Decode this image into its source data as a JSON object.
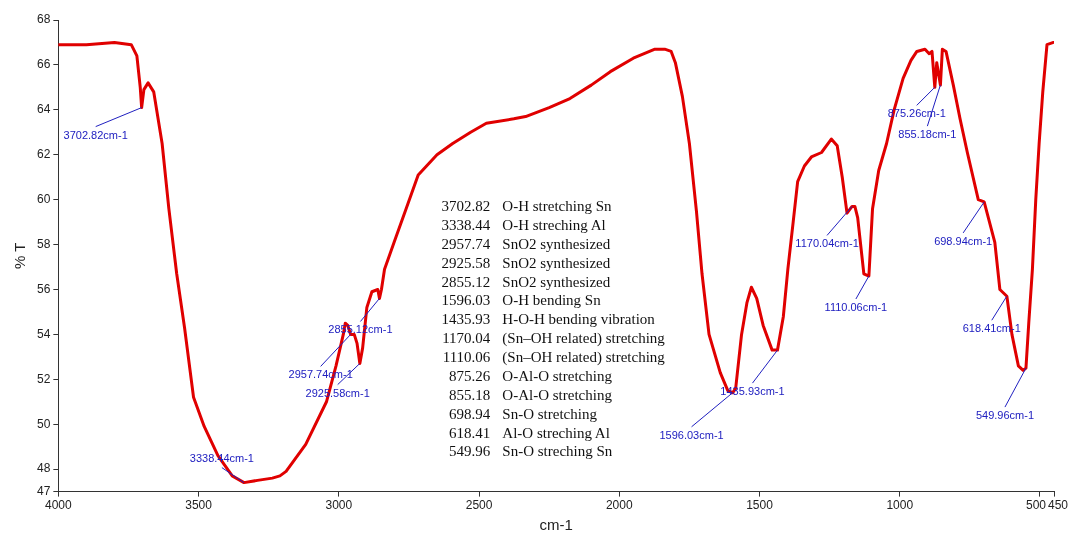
{
  "chart_data": {
    "type": "line",
    "xlabel": "cm-1",
    "ylabel": "% T",
    "marker": "none",
    "line_style": "solid",
    "xlim": [
      4000,
      450
    ],
    "xticks": [
      4000,
      3500,
      3000,
      2500,
      2000,
      1500,
      1000,
      500,
      450
    ],
    "ylim": [
      47,
      68
    ],
    "yticks": [
      47,
      48,
      50,
      52,
      54,
      56,
      58,
      60,
      62,
      64,
      66,
      68
    ],
    "series": [
      {
        "color": "#e00000",
        "x": [
          4000,
          3900,
          3800,
          3740,
          3720,
          3708,
          3703,
          3695,
          3680,
          3660,
          3630,
          3606,
          3578,
          3550,
          3518,
          3480,
          3431,
          3380,
          3338,
          3290,
          3237,
          3210,
          3188,
          3118,
          3044,
          3010,
          2984,
          2977,
          2968,
          2958,
          2945,
          2935,
          2925,
          2915,
          2900,
          2882,
          2861,
          2855,
          2848,
          2837,
          2800,
          2760,
          2717,
          2650,
          2594,
          2530,
          2474,
          2376,
          2334,
          2250,
          2176,
          2100,
          2032,
          1950,
          1873,
          1838,
          1815,
          1800,
          1775,
          1750,
          1725,
          1705,
          1680,
          1640,
          1613,
          1596,
          1585,
          1564,
          1545,
          1529,
          1510,
          1487,
          1455,
          1436,
          1415,
          1399,
          1380,
          1364,
          1340,
          1315,
          1279,
          1244,
          1223,
          1205,
          1188,
          1170,
          1160,
          1150,
          1128,
          1110,
          1097,
          1075,
          1047,
          1020,
          988,
          960,
          939,
          910,
          895,
          885,
          875,
          868,
          855,
          848,
          835,
          809,
          785,
          759,
          720,
          699,
          680,
          661,
          643,
          618,
          600,
          577,
          560,
          550,
          540,
          527,
          515,
          503,
          490,
          475,
          452
        ],
        "values": [
          66.9,
          66.9,
          67.0,
          66.9,
          66.4,
          65.0,
          64.1,
          64.9,
          65.2,
          64.8,
          62.5,
          59.6,
          56.7,
          54.3,
          51.2,
          49.9,
          48.6,
          47.7,
          47.4,
          47.5,
          47.6,
          47.7,
          47.9,
          49.1,
          51.0,
          52.6,
          54.0,
          54.5,
          54.4,
          54.0,
          54.0,
          53.6,
          52.7,
          53.4,
          55.2,
          55.9,
          56.0,
          55.6,
          56.0,
          56.9,
          58.2,
          59.6,
          61.1,
          62.0,
          62.5,
          63.0,
          63.4,
          63.6,
          63.7,
          64.1,
          64.5,
          65.1,
          65.7,
          66.3,
          66.7,
          66.7,
          66.6,
          66.1,
          64.6,
          62.5,
          59.5,
          56.7,
          54.0,
          52.3,
          51.5,
          51.4,
          51.6,
          54.0,
          55.4,
          56.1,
          55.6,
          54.4,
          53.3,
          53.3,
          54.8,
          56.9,
          59.0,
          60.8,
          61.5,
          61.9,
          62.1,
          62.7,
          62.4,
          61.0,
          59.4,
          59.7,
          59.7,
          59.2,
          56.7,
          56.6,
          59.6,
          61.3,
          62.5,
          64.0,
          65.4,
          66.2,
          66.6,
          66.7,
          66.5,
          66.6,
          65.0,
          66.1,
          65.1,
          66.7,
          66.6,
          65.1,
          63.6,
          62.1,
          60.0,
          59.9,
          59.0,
          58.1,
          56.0,
          55.7,
          54.0,
          52.6,
          52.4,
          52.5,
          54.5,
          56.9,
          60.0,
          62.5,
          64.8,
          66.9,
          67.0
        ]
      }
    ],
    "annotations": [
      {
        "text": "3702.82cm-1",
        "x": 3702.82,
        "y": 64.1
      },
      {
        "text": "3338.44cm-1",
        "x": 3338.44,
        "y": 47.4
      },
      {
        "text": "2957.74cm-1",
        "x": 2957.74,
        "y": 54.0
      },
      {
        "text": "2925.58cm-1",
        "x": 2925.58,
        "y": 52.7
      },
      {
        "text": "2855.12cm-1",
        "x": 2855.12,
        "y": 55.6
      },
      {
        "text": "1596.03cm-1",
        "x": 1596.03,
        "y": 51.4
      },
      {
        "text": "1435.93cm-1",
        "x": 1435.93,
        "y": 53.3
      },
      {
        "text": "1170.04cm-1",
        "x": 1170.04,
        "y": 59.7
      },
      {
        "text": "1110.06cm-1",
        "x": 1110.06,
        "y": 56.6
      },
      {
        "text": "875.26cm-1",
        "x": 875.26,
        "y": 65.0
      },
      {
        "text": "855.18cm-1",
        "x": 855.18,
        "y": 65.1
      },
      {
        "text": "698.94cm-1",
        "x": 698.94,
        "y": 59.9
      },
      {
        "text": "618.41cm-1",
        "x": 618.41,
        "y": 55.7
      },
      {
        "text": "549.96cm-1",
        "x": 549.96,
        "y": 52.5
      },
      "3702.82 O-H stretching Sn",
      "3338.44 O-H streching Al",
      "2957.74 SnO2 synthesized",
      "2925.58 SnO2 synthesized",
      "2855.12 SnO2 synthesized",
      "1596.03 O-H bending Sn",
      "1435.93 H-O-H bending vibration",
      "1170.04 (Sn–OH related) stretching",
      "1110.06 (Sn–OH related) stretching",
      "875.26 O-Al-O stretching",
      "855.18 O-Al-O stretching",
      "698.94 Sn-O stretching",
      "618.41 Al-O streching Al",
      "549.96 Sn-O streching Sn"
    ]
  }
}
